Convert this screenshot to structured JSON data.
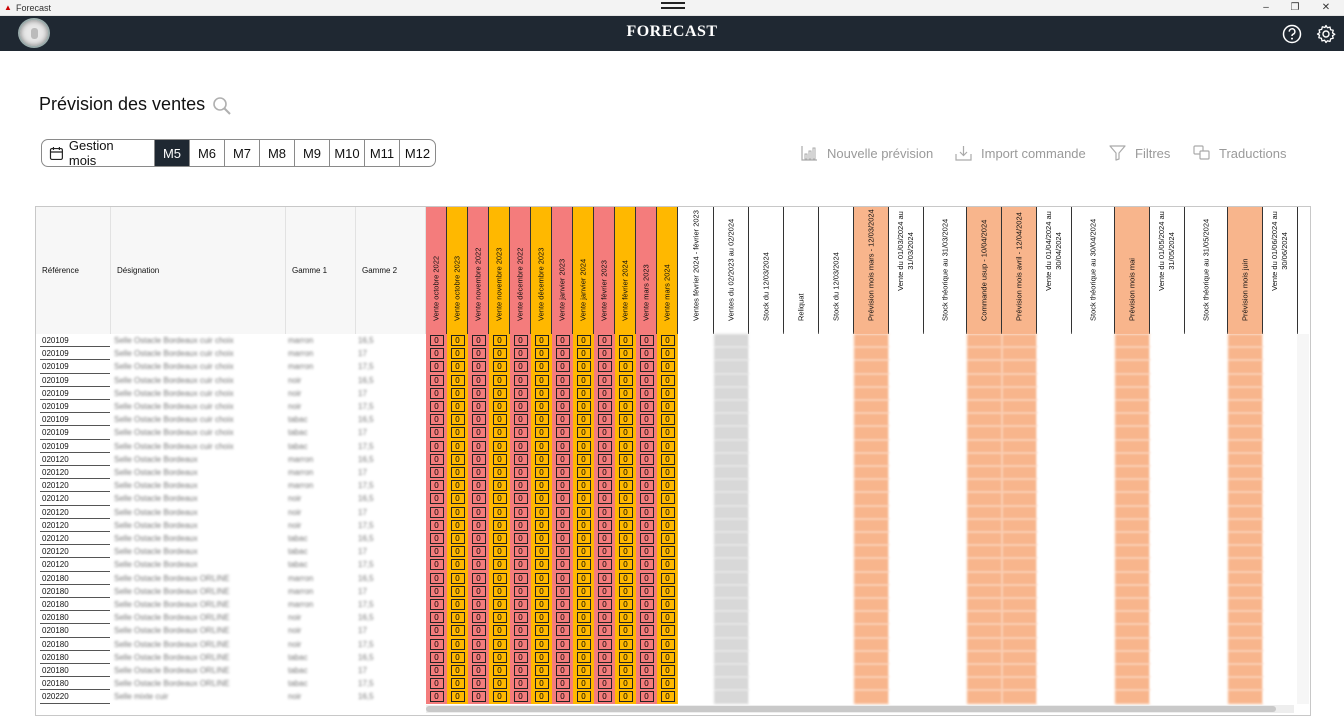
{
  "window": {
    "title": "Forecast"
  },
  "app": {
    "title": "FORECAST"
  },
  "page": {
    "title": "Prévision des ventes"
  },
  "months": {
    "manage_label": "Gestion mois",
    "items": [
      "M5",
      "M6",
      "M7",
      "M8",
      "M9",
      "M10",
      "M11",
      "M12"
    ],
    "active": "M5"
  },
  "actions": {
    "new_forecast": "Nouvelle prévision",
    "import_order": "Import commande",
    "filters": "Filtres",
    "translations": "Traductions"
  },
  "colors": {
    "header_bg": "#1f2832",
    "red_col": "#f47c7c",
    "orange_col": "#ffb800",
    "peach_col": "#f8b58c",
    "gray_col": "#d8d8d8"
  },
  "table": {
    "static_headers": [
      "Référence",
      "Désignation",
      "Gamme 1",
      "Gamme 2"
    ],
    "sales_headers": [
      "Vente octobre 2022",
      "Vente octobre 2023",
      "Vente novembre 2022",
      "Vente novembre 2023",
      "Vente décembre 2022",
      "Vente décembre 2023",
      "Vente janvier 2023",
      "Vente janvier 2024",
      "Vente février 2023",
      "Vente février 2024",
      "Vente mars 2023",
      "Vente mars 2024"
    ],
    "forecast_headers": [
      "Ventes février 2024 - février 2023",
      "Ventes du 02/2023 au 02/2024",
      "Stock du 12/03/2024",
      "Reliquat",
      "Stock du 12/03/2024",
      "Prévision mois mars - 12/03/2024",
      "Vente du 01/03/2024 au 31/03/2024",
      "Stock théorique au 31/03/2024",
      "Commande usup - 10/04/2024",
      "Prévision mois avril - 12/04/2024",
      "Vente du 01/04/2024 au 30/04/2024",
      "Stock théorique au 30/04/2024",
      "Prévision mois mai",
      "Vente du 01/05/2024 au 31/05/2024",
      "Stock théorique au 31/05/2024",
      "Prévision mois juin",
      "Vente du 01/06/2024 au 30/06/2024"
    ],
    "sales_value": "0",
    "references": [
      "020109",
      "020109",
      "020109",
      "020109",
      "020109",
      "020109",
      "020109",
      "020109",
      "020109",
      "020120",
      "020120",
      "020120",
      "020120",
      "020120",
      "020120",
      "020120",
      "020120",
      "020120",
      "020180",
      "020180",
      "020180",
      "020180",
      "020180",
      "020180",
      "020180",
      "020180",
      "020180",
      "020220"
    ],
    "designations": [
      "Selle Ostacle Bordeaux cuir choix",
      "Selle Ostacle Bordeaux cuir choix",
      "Selle Ostacle Bordeaux cuir choix",
      "Selle Ostacle Bordeaux cuir choix",
      "Selle Ostacle Bordeaux cuir choix",
      "Selle Ostacle Bordeaux cuir choix",
      "Selle Ostacle Bordeaux cuir choix",
      "Selle Ostacle Bordeaux cuir choix",
      "Selle Ostacle Bordeaux cuir choix",
      "Selle Ostacle Bordeaux",
      "Selle Ostacle Bordeaux",
      "Selle Ostacle Bordeaux",
      "Selle Ostacle Bordeaux",
      "Selle Ostacle Bordeaux",
      "Selle Ostacle Bordeaux",
      "Selle Ostacle Bordeaux",
      "Selle Ostacle Bordeaux",
      "Selle Ostacle Bordeaux",
      "Selle Ostacle Bordeaux ORLINE",
      "Selle Ostacle Bordeaux ORLINE",
      "Selle Ostacle Bordeaux ORLINE",
      "Selle Ostacle Bordeaux ORLINE",
      "Selle Ostacle Bordeaux ORLINE",
      "Selle Ostacle Bordeaux ORLINE",
      "Selle Ostacle Bordeaux ORLINE",
      "Selle Ostacle Bordeaux ORLINE",
      "Selle Ostacle Bordeaux ORLINE",
      "Selle mixte cuir"
    ],
    "gamme1": [
      "marron",
      "marron",
      "marron",
      "noir",
      "noir",
      "noir",
      "tabac",
      "tabac",
      "tabac",
      "marron",
      "marron",
      "marron",
      "noir",
      "noir",
      "noir",
      "tabac",
      "tabac",
      "tabac",
      "marron",
      "marron",
      "marron",
      "noir",
      "noir",
      "noir",
      "tabac",
      "tabac",
      "tabac",
      "noir"
    ],
    "gamme2": [
      "16,5",
      "17",
      "17,5",
      "16,5",
      "17",
      "17,5",
      "16,5",
      "17",
      "17,5",
      "16,5",
      "17",
      "17,5",
      "16,5",
      "17",
      "17,5",
      "16,5",
      "17",
      "17,5",
      "16,5",
      "17",
      "17,5",
      "16,5",
      "17",
      "17,5",
      "16,5",
      "17",
      "17,5",
      "16,5"
    ]
  }
}
